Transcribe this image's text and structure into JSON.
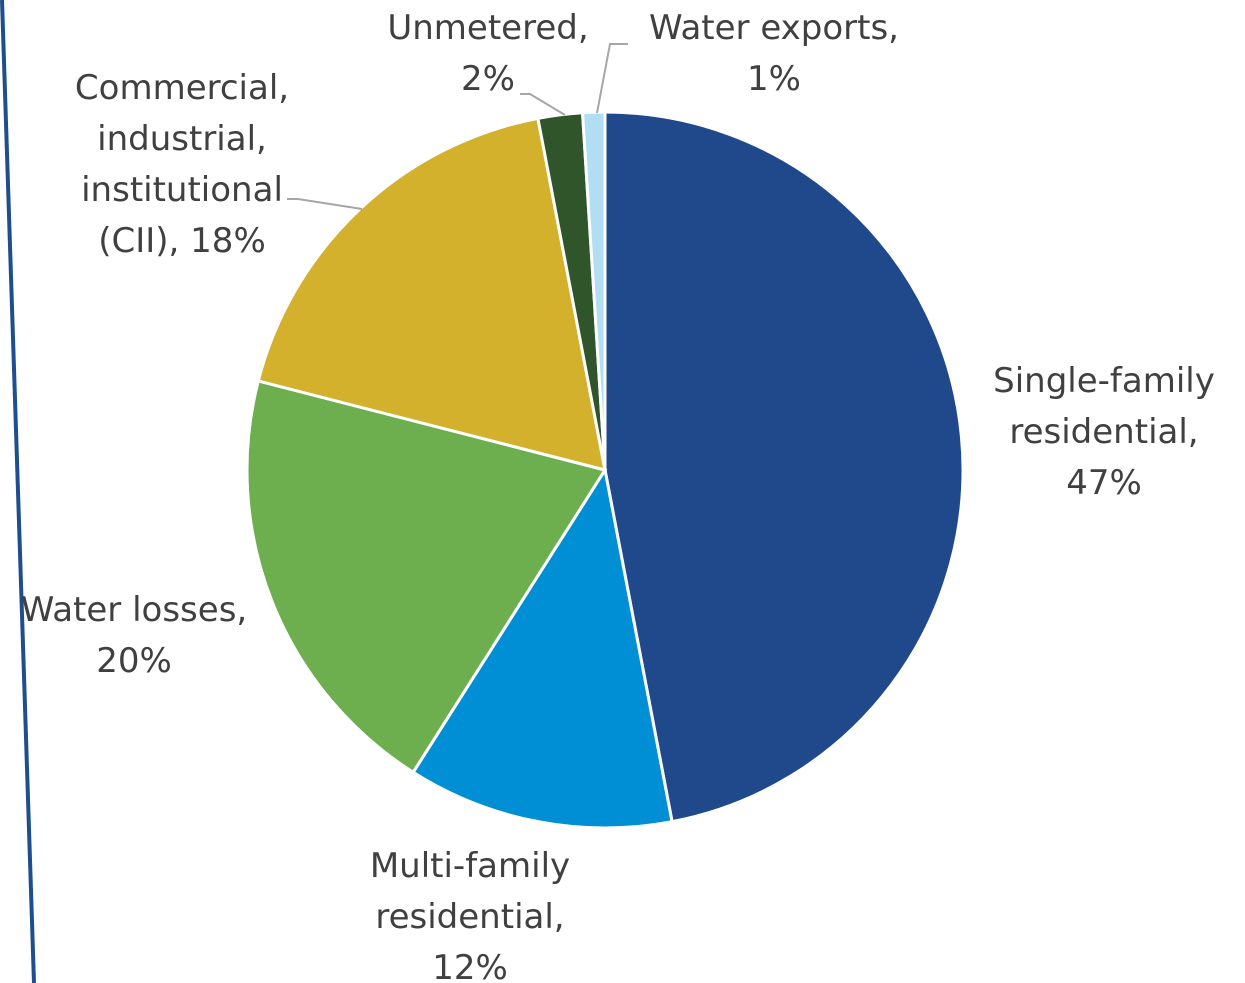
{
  "chart_data": {
    "type": "pie",
    "title": "",
    "slices": [
      {
        "label": "Single-family residential",
        "value": 47,
        "color": "#20498C"
      },
      {
        "label": "Multi-family residential",
        "value": 12,
        "color": "#008FD5"
      },
      {
        "label": "Water losses",
        "value": 20,
        "color": "#6DAE4F"
      },
      {
        "label": "Commercial, industrial, institutional (CII)",
        "value": 18,
        "color": "#D4B12C"
      },
      {
        "label": "Unmetered",
        "value": 2,
        "color": "#30552A"
      },
      {
        "label": "Water exports",
        "value": 1,
        "color": "#B1DEF2"
      }
    ],
    "data_labels": [
      [
        "Single-family",
        "residential,",
        "47%"
      ],
      [
        "Multi-family",
        "residential,",
        "12%"
      ],
      [
        "Water losses,",
        "20%"
      ],
      [
        "Commercial,",
        "industrial,",
        "institutional",
        "(CII), 18%"
      ],
      [
        "Unmetered,",
        "2%"
      ],
      [
        "Water exports,",
        "1%"
      ]
    ],
    "start_angle": "12 o'clock",
    "direction": "clockwise",
    "legend": "none"
  },
  "frame": {
    "border_color": "#1F4E8C"
  }
}
